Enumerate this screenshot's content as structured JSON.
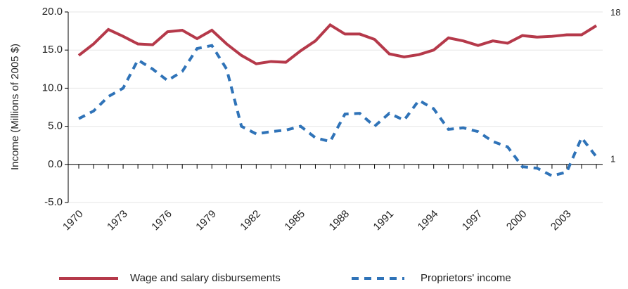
{
  "chart_data": {
    "type": "line",
    "y_label": "Income (Millions of 2005 $)",
    "categories": [
      "1970",
      null,
      null,
      "1973",
      null,
      null,
      "1976",
      null,
      null,
      "1979",
      null,
      null,
      "1982",
      null,
      null,
      "1985",
      null,
      null,
      "1988",
      null,
      null,
      "1991",
      null,
      null,
      "1994",
      null,
      null,
      "1997",
      null,
      null,
      "2000",
      null,
      null,
      "2003",
      null,
      null
    ],
    "series": [
      {
        "name": "Wage and salary disbursements",
        "color": "#b5394a",
        "dash": false,
        "end_label": "18",
        "values": [
          14.3,
          15.8,
          17.7,
          16.8,
          15.8,
          15.7,
          17.4,
          17.6,
          16.5,
          17.6,
          15.8,
          14.3,
          13.2,
          13.5,
          13.4,
          14.9,
          16.2,
          18.3,
          17.1,
          17.1,
          16.4,
          14.5,
          14.1,
          14.4,
          15.0,
          16.6,
          16.2,
          15.6,
          16.2,
          15.9,
          16.9,
          16.7,
          16.8,
          17.0,
          17.0,
          18.2
        ]
      },
      {
        "name": "Proprietors' income",
        "color": "#2f73b8",
        "dash": true,
        "end_label": "1",
        "values": [
          6.0,
          7.0,
          8.9,
          10.0,
          13.7,
          12.5,
          11.0,
          12.2,
          15.2,
          15.6,
          12.5,
          5.0,
          4.0,
          4.3,
          4.5,
          5.0,
          3.5,
          3.0,
          6.6,
          6.7,
          5.0,
          6.7,
          5.8,
          8.4,
          7.3,
          4.6,
          4.8,
          4.3,
          3.0,
          2.3,
          -0.3,
          -0.5,
          -1.5,
          -1.0,
          3.5,
          1.0
        ]
      }
    ],
    "ylim": [
      -5,
      20
    ],
    "yticks": [
      {
        "value": -5,
        "label": "-5.0"
      },
      {
        "value": 0,
        "label": "0.0"
      },
      {
        "value": 5,
        "label": "5.0"
      },
      {
        "value": 10,
        "label": "10.0"
      },
      {
        "value": 15,
        "label": "15.0"
      },
      {
        "value": 20,
        "label": "20.0"
      }
    ],
    "grid": true,
    "legend": "bottom"
  }
}
